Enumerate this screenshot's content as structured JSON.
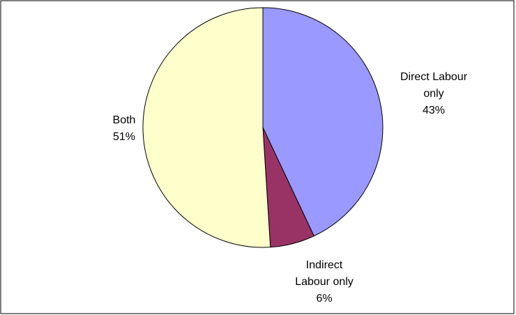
{
  "chart_data": {
    "type": "pie",
    "categories": [
      "Direct Labour only",
      "Indirect Labour only",
      "Both"
    ],
    "values": [
      43,
      6,
      51
    ],
    "value_labels": [
      "43%",
      "6%",
      "51%"
    ],
    "colors": [
      "#9999ff",
      "#993366",
      "#ffffcc"
    ]
  }
}
